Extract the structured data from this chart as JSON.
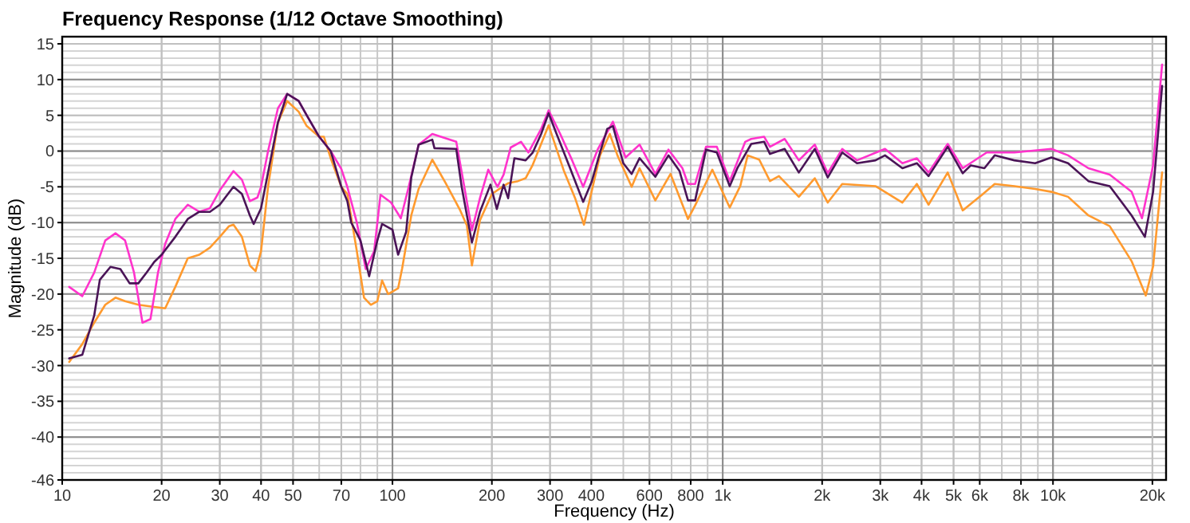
{
  "chart_data": {
    "type": "line",
    "title": "Frequency Response (1/12 Octave Smoothing)",
    "xlabel": "Frequency (Hz)",
    "ylabel": "Magnitude (dB)",
    "log": "x",
    "grid": true,
    "line_style": "solid",
    "marker": "none",
    "xlim": [
      10,
      22000
    ],
    "ylim": [
      -46,
      16
    ],
    "xticks": [
      10,
      20,
      30,
      40,
      50,
      70,
      100,
      200,
      300,
      400,
      600,
      800,
      {
        "value": 1000,
        "label": "1k"
      },
      {
        "value": 2000,
        "label": "2k"
      },
      {
        "value": 3000,
        "label": "3k"
      },
      {
        "value": 4000,
        "label": "4k"
      },
      {
        "value": 5000,
        "label": "5k"
      },
      {
        "value": 6000,
        "label": "6k"
      },
      {
        "value": 8000,
        "label": "8k"
      },
      {
        "value": 10000,
        "label": "10k"
      },
      {
        "value": 20000,
        "label": "20k"
      }
    ],
    "yticks": [
      15,
      10,
      5,
      0,
      -5,
      -10,
      -15,
      -20,
      -25,
      -30,
      -35,
      -40,
      -46
    ],
    "series": [
      {
        "color": "#ff9a2e",
        "x": [
          10.5,
          11.5,
          12.5,
          13.5,
          14.5,
          15.5,
          17,
          19,
          20.5,
          22,
          24,
          26,
          28,
          30,
          32,
          33,
          35,
          37,
          38.5,
          40,
          42,
          45,
          48,
          52,
          55,
          60,
          62,
          65,
          70,
          73,
          78,
          82,
          86,
          90,
          93,
          97,
          104,
          107,
          114,
          120,
          132,
          145,
          160,
          168,
          174,
          184,
          200,
          217,
          224,
          240,
          253,
          266,
          297,
          330,
          358,
          380,
          425,
          455,
          480,
          530,
          560,
          625,
          695,
          785,
          825,
          930,
          1050,
          1130,
          1190,
          1290,
          1390,
          1480,
          1700,
          1900,
          2080,
          2300,
          2900,
          3500,
          3870,
          4200,
          4800,
          5330,
          6100,
          6660,
          7640,
          8830,
          9890,
          11110,
          12800,
          14850,
          17300,
          19100,
          20100,
          21400
        ],
        "values": [
          -29.5,
          -27,
          -24,
          -21.5,
          -20.5,
          -21,
          -21.5,
          -21.8,
          -22,
          -19,
          -15,
          -14.5,
          -13.5,
          -12,
          -10.5,
          -10.3,
          -12,
          -16,
          -16.8,
          -14,
          -5,
          4,
          7,
          5.5,
          3.5,
          2,
          2,
          -1,
          -5,
          -6,
          -14,
          -20.5,
          -21.5,
          -21,
          -18.1,
          -20,
          -19.2,
          -16.4,
          -9,
          -5.3,
          -1.2,
          -4.5,
          -8.2,
          -10.4,
          -16,
          -9.7,
          -6,
          -4.9,
          -4.5,
          -4.2,
          -3.8,
          -1.9,
          3.6,
          -2.7,
          -6.7,
          -10.3,
          -0.6,
          2.4,
          -0.6,
          -5,
          -2.4,
          -6.9,
          -3.2,
          -9.5,
          -7.6,
          -2.6,
          -7.9,
          -4.9,
          -0.6,
          -1.2,
          -4.2,
          -3.5,
          -6.4,
          -3.8,
          -7.2,
          -4.6,
          -4.9,
          -7.2,
          -4.6,
          -7.5,
          -3,
          -8.3,
          -6.1,
          -4.6,
          -4.9,
          -5.3,
          -5.7,
          -6.4,
          -9,
          -10.5,
          -15.4,
          -20.2,
          -16.1,
          -3
        ]
      },
      {
        "color": "#ff33cc",
        "x": [
          10.5,
          11.5,
          12.5,
          13.5,
          14.5,
          15.5,
          16.5,
          17.5,
          18.5,
          19.5,
          20.5,
          22,
          24,
          26,
          28,
          30,
          33,
          35,
          37,
          39,
          40,
          42,
          45,
          48,
          52,
          55,
          60,
          65,
          70,
          73,
          78,
          83,
          88,
          92,
          99,
          106,
          112,
          120,
          132,
          156,
          165,
          174,
          184,
          195,
          208,
          217,
          228,
          245,
          258,
          282,
          297,
          322,
          350,
          378,
          418,
          465,
          508,
          560,
          625,
          685,
          755,
          785,
          825,
          890,
          960,
          1050,
          1170,
          1220,
          1335,
          1390,
          1540,
          1700,
          1900,
          2080,
          2300,
          2550,
          3100,
          3500,
          3870,
          4200,
          4800,
          5330,
          6300,
          7640,
          9890,
          11110,
          12800,
          14850,
          17300,
          18600,
          20100,
          21400
        ],
        "values": [
          -19,
          -20.3,
          -17,
          -12.5,
          -11.5,
          -12.5,
          -17,
          -24,
          -23.5,
          -17,
          -13,
          -9.5,
          -7.5,
          -8.5,
          -8,
          -5.5,
          -2.8,
          -4,
          -7,
          -6.5,
          -5,
          0,
          6,
          8,
          7,
          5,
          2,
          0,
          -2.5,
          -5,
          -10,
          -16.5,
          -14,
          -6.1,
          -7.2,
          -9.4,
          -5,
          0.9,
          2.4,
          1.3,
          -5,
          -11.1,
          -6.6,
          -2.6,
          -5,
          -3.3,
          0.5,
          1.3,
          -0.2,
          3.1,
          5.7,
          2.4,
          -1.3,
          -5,
          0.2,
          4.1,
          -0.9,
          0.9,
          -3.2,
          0.2,
          -2.4,
          -4.6,
          -4.6,
          0.6,
          0.6,
          -4.2,
          1.3,
          1.7,
          2,
          0.6,
          1.7,
          -1.3,
          0.9,
          -3.1,
          0.3,
          -1.3,
          0.3,
          -1.7,
          -1,
          -3,
          1,
          -2.4,
          -0.2,
          -0.2,
          0.3,
          -0.6,
          -2.4,
          -3.3,
          -5.7,
          -9.4,
          -2,
          12.1
        ]
      },
      {
        "color": "#4a1457",
        "x": [
          10.5,
          11.5,
          12.5,
          13,
          14,
          15,
          16,
          17,
          18,
          19,
          20,
          22,
          24,
          26,
          28,
          30,
          33,
          35,
          37,
          38,
          40,
          42,
          45,
          48,
          52,
          55,
          60,
          65,
          70,
          73,
          75,
          80,
          85,
          90,
          93,
          100,
          104,
          110,
          114,
          120,
          132,
          134,
          156,
          162,
          174,
          184,
          198,
          207,
          217,
          224,
          234,
          253,
          266,
          282,
          297,
          314,
          343,
          378,
          401,
          425,
          447,
          465,
          500,
          530,
          560,
          625,
          685,
          740,
          785,
          825,
          890,
          960,
          1050,
          1110,
          1220,
          1335,
          1390,
          1540,
          1700,
          1900,
          2080,
          2300,
          2550,
          2900,
          3100,
          3500,
          3870,
          4200,
          4800,
          5330,
          5640,
          6200,
          6660,
          7640,
          8830,
          9890,
          11110,
          12800,
          14850,
          17300,
          18980,
          20100,
          21400
        ],
        "values": [
          -29,
          -28.5,
          -23,
          -18,
          -16.2,
          -16.5,
          -18.5,
          -18.5,
          -17,
          -15.5,
          -14.5,
          -12,
          -9.5,
          -8.5,
          -8.5,
          -7.5,
          -5,
          -6,
          -9,
          -10.2,
          -8,
          -3,
          4,
          8,
          7,
          5,
          2,
          0,
          -5,
          -7,
          -10,
          -12.5,
          -17.5,
          -12.5,
          -10.2,
          -11,
          -14.5,
          -11.3,
          -3.7,
          0.9,
          1.6,
          0.4,
          0.3,
          -5,
          -12.8,
          -8.5,
          -4.7,
          -8.1,
          -4.7,
          -6.6,
          -1,
          -1.3,
          -0.2,
          2.4,
          5.3,
          2.4,
          -2.1,
          -7.1,
          -4.3,
          -0.2,
          3.1,
          3.5,
          -1.7,
          -3.2,
          -1,
          -3.6,
          -0.6,
          -2.8,
          -6.9,
          -6.9,
          0.2,
          -0.2,
          -4.9,
          -2.3,
          1,
          1.3,
          -0.4,
          0.3,
          -3,
          0.3,
          -3.7,
          -0.2,
          -1.7,
          -1.3,
          -0.6,
          -2.4,
          -1.7,
          -3.5,
          0.6,
          -3.1,
          -2,
          -2.4,
          -0.6,
          -1.3,
          -1.7,
          -0.9,
          -1.7,
          -4.2,
          -4.9,
          -9,
          -12,
          -5.7,
          9.1
        ]
      }
    ]
  }
}
